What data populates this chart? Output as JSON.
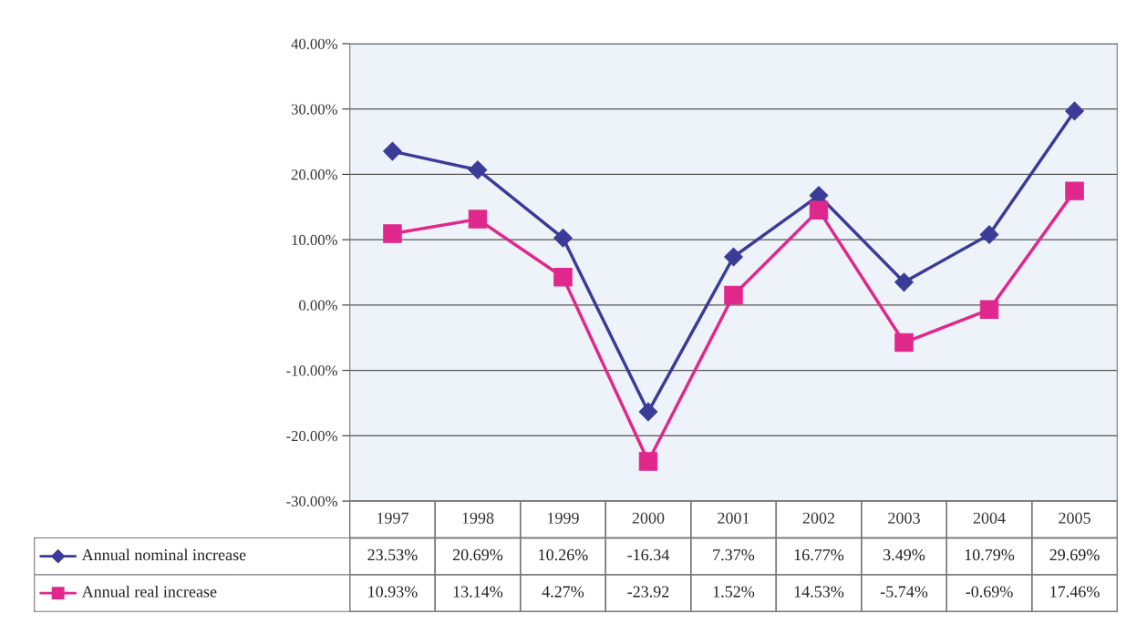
{
  "chart_data": {
    "type": "line",
    "categories": [
      "1997",
      "1998",
      "1999",
      "2000",
      "2001",
      "2002",
      "2003",
      "2004",
      "2005"
    ],
    "series": [
      {
        "name": "Annual nominal increase",
        "color": "#3b3b98",
        "marker": "diamond",
        "values": [
          23.53,
          20.69,
          10.26,
          -16.34,
          7.37,
          16.77,
          3.49,
          10.79,
          29.69
        ],
        "value_labels": [
          "23.53%",
          "20.69%",
          "10.26%",
          "-16.34",
          "7.37%",
          "16.77%",
          "3.49%",
          "10.79%",
          "29.69%"
        ]
      },
      {
        "name": "Annual real increase",
        "color": "#e0288c",
        "marker": "square",
        "values": [
          10.93,
          13.14,
          4.27,
          -23.92,
          1.52,
          14.53,
          -5.74,
          -0.69,
          17.46
        ],
        "value_labels": [
          "10.93%",
          "13.14%",
          "4.27%",
          "-23.92",
          "1.52%",
          "14.53%",
          "-5.74%",
          "-0.69%",
          "17.46%"
        ]
      }
    ],
    "ylim": [
      -30,
      40
    ],
    "yticks": [
      {
        "value": -30,
        "label": "-30.00%"
      },
      {
        "value": -20,
        "label": "-20.00%"
      },
      {
        "value": -10,
        "label": "-10.00%"
      },
      {
        "value": 0,
        "label": "0.00%"
      },
      {
        "value": 10,
        "label": "10.00%"
      },
      {
        "value": 20,
        "label": "20.00%"
      },
      {
        "value": 30,
        "label": "30.00%"
      },
      {
        "value": 40,
        "label": "40.00%"
      }
    ],
    "grid": "y",
    "legend": "bottom left",
    "line_style": "solid"
  }
}
